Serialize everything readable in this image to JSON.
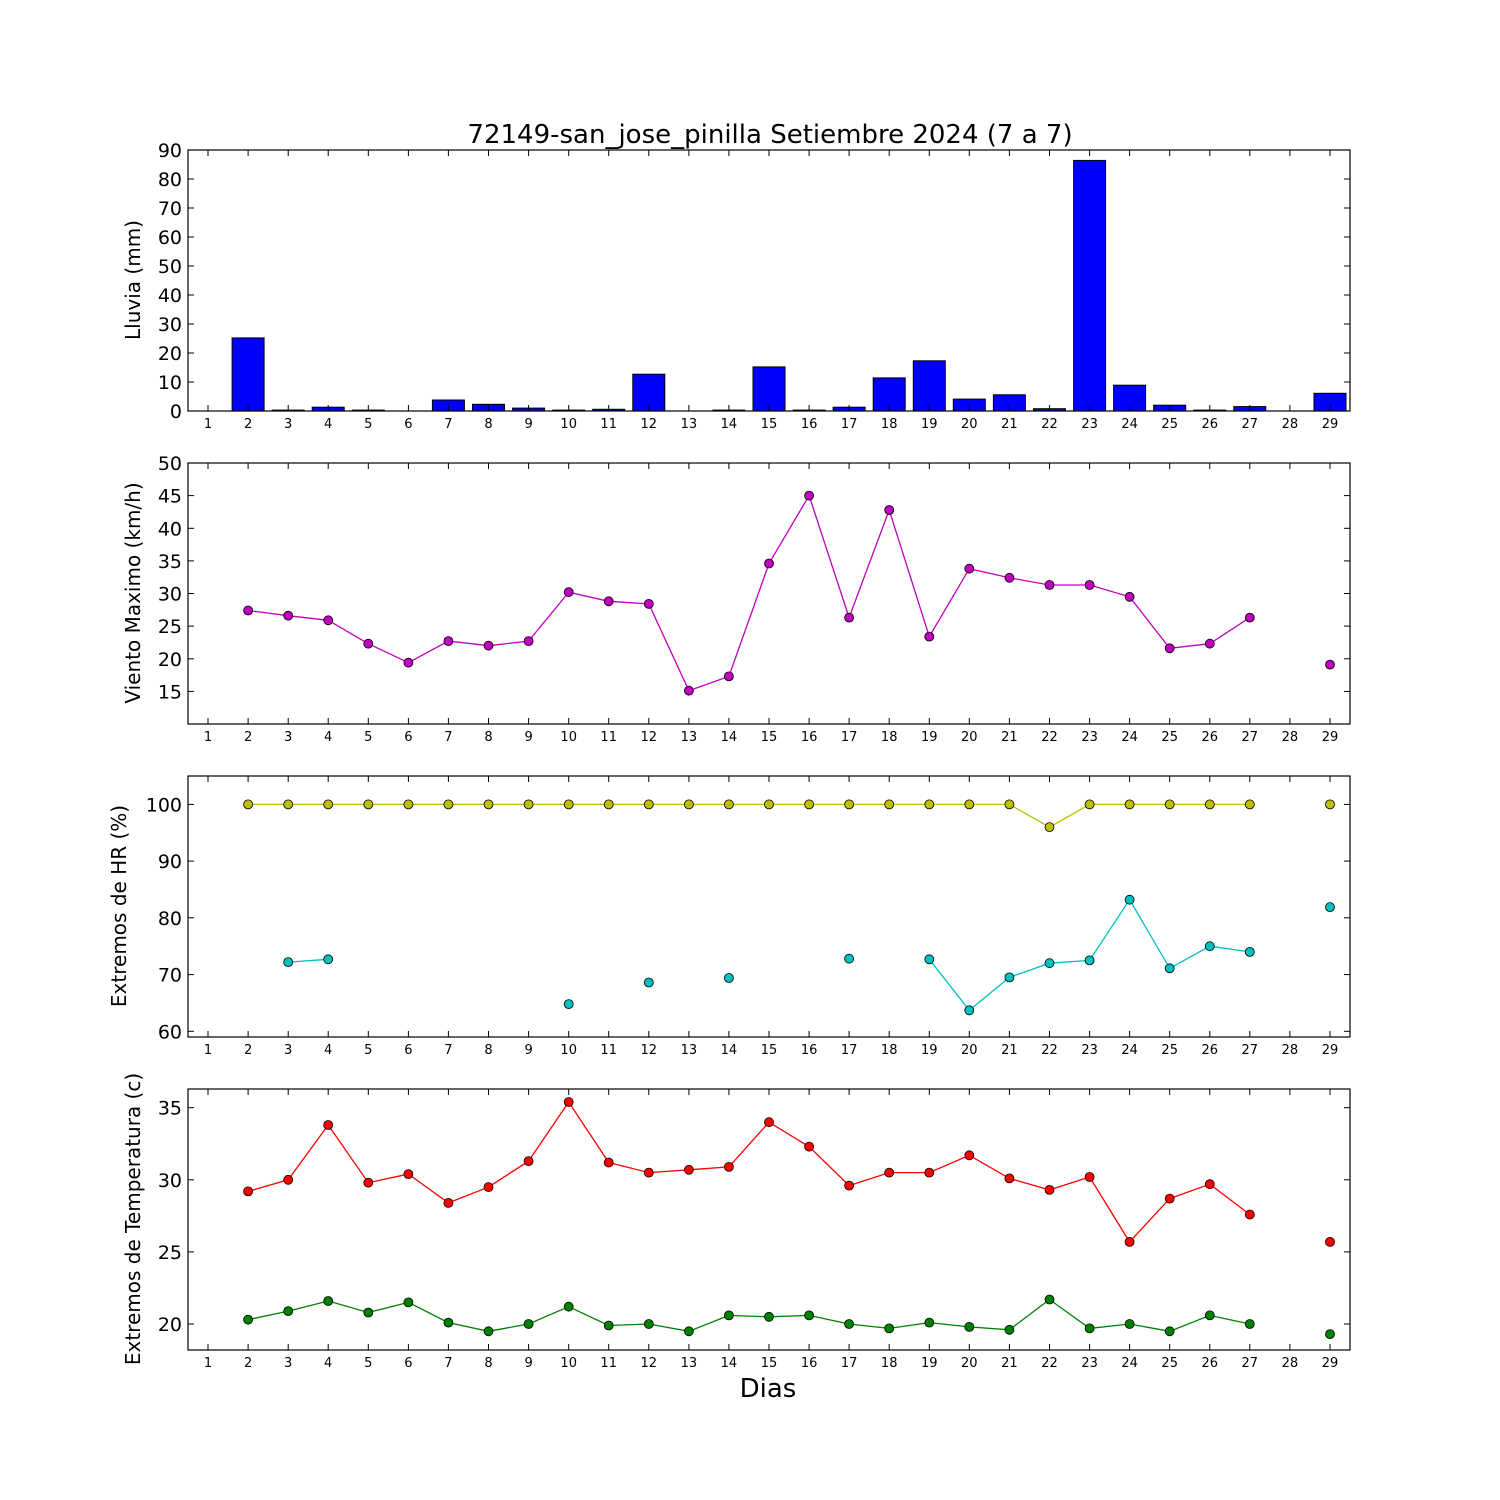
{
  "figure": {
    "title": "72149-san_jose_pinilla Setiembre 2024  (7 a 7)",
    "xlabel": "Dias"
  },
  "chart_data": [
    {
      "type": "bar",
      "ylabel": "Lluvia (mm)",
      "xlim": [
        0.5,
        29.5
      ],
      "ylim": [
        0,
        90
      ],
      "yticks": [
        0,
        10,
        20,
        30,
        40,
        50,
        60,
        70,
        80,
        90
      ],
      "xticks": [
        1,
        2,
        3,
        4,
        5,
        6,
        7,
        8,
        9,
        10,
        11,
        12,
        13,
        14,
        15,
        16,
        17,
        18,
        19,
        20,
        21,
        22,
        23,
        24,
        25,
        26,
        27,
        28,
        29
      ],
      "bar_color": "#0000ff",
      "x": [
        1,
        2,
        3,
        4,
        5,
        6,
        7,
        8,
        9,
        10,
        11,
        12,
        13,
        14,
        15,
        16,
        17,
        18,
        19,
        20,
        21,
        22,
        23,
        24,
        25,
        26,
        27,
        28,
        29
      ],
      "values": [
        0,
        25.2,
        0.3,
        1.3,
        0.3,
        0,
        3.8,
        2.3,
        1.0,
        0.3,
        0.6,
        12.7,
        0,
        0.3,
        15.2,
        0.3,
        1.3,
        11.4,
        17.3,
        4.1,
        5.6,
        0.8,
        86.4,
        8.9,
        2.0,
        0.3,
        1.5,
        0,
        6.1
      ]
    },
    {
      "type": "line",
      "ylabel": "Viento Maximo (km/h)",
      "xlim": [
        0.5,
        29.5
      ],
      "ylim": [
        10,
        50
      ],
      "yticks": [
        15,
        20,
        25,
        30,
        35,
        40,
        45,
        50
      ],
      "xticks": [
        1,
        2,
        3,
        4,
        5,
        6,
        7,
        8,
        9,
        10,
        11,
        12,
        13,
        14,
        15,
        16,
        17,
        18,
        19,
        20,
        21,
        22,
        23,
        24,
        25,
        26,
        27,
        28,
        29
      ],
      "x": [
        1,
        2,
        3,
        4,
        5,
        6,
        7,
        8,
        9,
        10,
        11,
        12,
        13,
        14,
        15,
        16,
        17,
        18,
        19,
        20,
        21,
        22,
        23,
        24,
        25,
        26,
        27,
        28,
        29
      ],
      "series": [
        {
          "color": "#bf00bf",
          "values": [
            null,
            27.4,
            26.6,
            25.9,
            22.3,
            19.4,
            22.7,
            22.0,
            22.7,
            30.2,
            28.8,
            28.4,
            15.1,
            17.3,
            34.6,
            45.0,
            26.3,
            42.8,
            23.4,
            33.8,
            32.4,
            31.3,
            31.3,
            29.5,
            21.6,
            22.3,
            26.3,
            null,
            19.1
          ]
        }
      ]
    },
    {
      "type": "line",
      "ylabel": "Extremos de HR (%)",
      "xlim": [
        0.5,
        29.5
      ],
      "ylim": [
        59,
        105
      ],
      "yticks": [
        60,
        70,
        80,
        90,
        100
      ],
      "xticks": [
        1,
        2,
        3,
        4,
        5,
        6,
        7,
        8,
        9,
        10,
        11,
        12,
        13,
        14,
        15,
        16,
        17,
        18,
        19,
        20,
        21,
        22,
        23,
        24,
        25,
        26,
        27,
        28,
        29
      ],
      "x": [
        1,
        2,
        3,
        4,
        5,
        6,
        7,
        8,
        9,
        10,
        11,
        12,
        13,
        14,
        15,
        16,
        17,
        18,
        19,
        20,
        21,
        22,
        23,
        24,
        25,
        26,
        27,
        28,
        29
      ],
      "series": [
        {
          "color": "#bfbf00",
          "values": [
            null,
            100,
            100,
            100,
            100,
            100,
            100,
            100,
            100,
            100,
            100,
            100,
            100,
            100,
            100,
            100,
            100,
            100,
            100,
            100,
            100,
            96,
            100,
            100,
            100,
            100,
            100,
            null,
            100
          ]
        },
        {
          "color": "#00bfbf",
          "values": [
            null,
            null,
            72.2,
            72.7,
            null,
            null,
            null,
            null,
            null,
            64.8,
            null,
            68.6,
            null,
            69.4,
            null,
            null,
            72.8,
            null,
            72.7,
            63.7,
            69.5,
            72.0,
            72.5,
            83.2,
            71.1,
            75.0,
            74.0,
            null,
            81.9
          ]
        }
      ]
    },
    {
      "type": "line",
      "ylabel": "Extremos de Temperatura (c)",
      "xlim": [
        0.5,
        29.5
      ],
      "ylim": [
        18.2,
        36.3
      ],
      "yticks": [
        20,
        25,
        30,
        35
      ],
      "xticks": [
        1,
        2,
        3,
        4,
        5,
        6,
        7,
        8,
        9,
        10,
        11,
        12,
        13,
        14,
        15,
        16,
        17,
        18,
        19,
        20,
        21,
        22,
        23,
        24,
        25,
        26,
        27,
        28,
        29
      ],
      "x": [
        1,
        2,
        3,
        4,
        5,
        6,
        7,
        8,
        9,
        10,
        11,
        12,
        13,
        14,
        15,
        16,
        17,
        18,
        19,
        20,
        21,
        22,
        23,
        24,
        25,
        26,
        27,
        28,
        29
      ],
      "series": [
        {
          "color": "#ff0000",
          "values": [
            null,
            29.2,
            30.0,
            33.8,
            29.8,
            30.4,
            28.4,
            29.5,
            31.3,
            35.4,
            31.2,
            30.5,
            30.7,
            30.9,
            34.0,
            32.3,
            29.6,
            30.5,
            30.5,
            31.7,
            30.1,
            29.3,
            30.2,
            25.7,
            28.7,
            29.7,
            27.6,
            null,
            25.7
          ]
        },
        {
          "color": "#008000",
          "values": [
            null,
            20.3,
            20.9,
            21.6,
            20.8,
            21.5,
            20.1,
            19.5,
            20.0,
            21.2,
            19.9,
            20.0,
            19.5,
            20.6,
            20.5,
            20.6,
            20.0,
            19.7,
            20.1,
            19.8,
            19.6,
            21.7,
            19.7,
            20.0,
            19.5,
            20.6,
            20.0,
            null,
            19.3
          ]
        }
      ]
    }
  ]
}
